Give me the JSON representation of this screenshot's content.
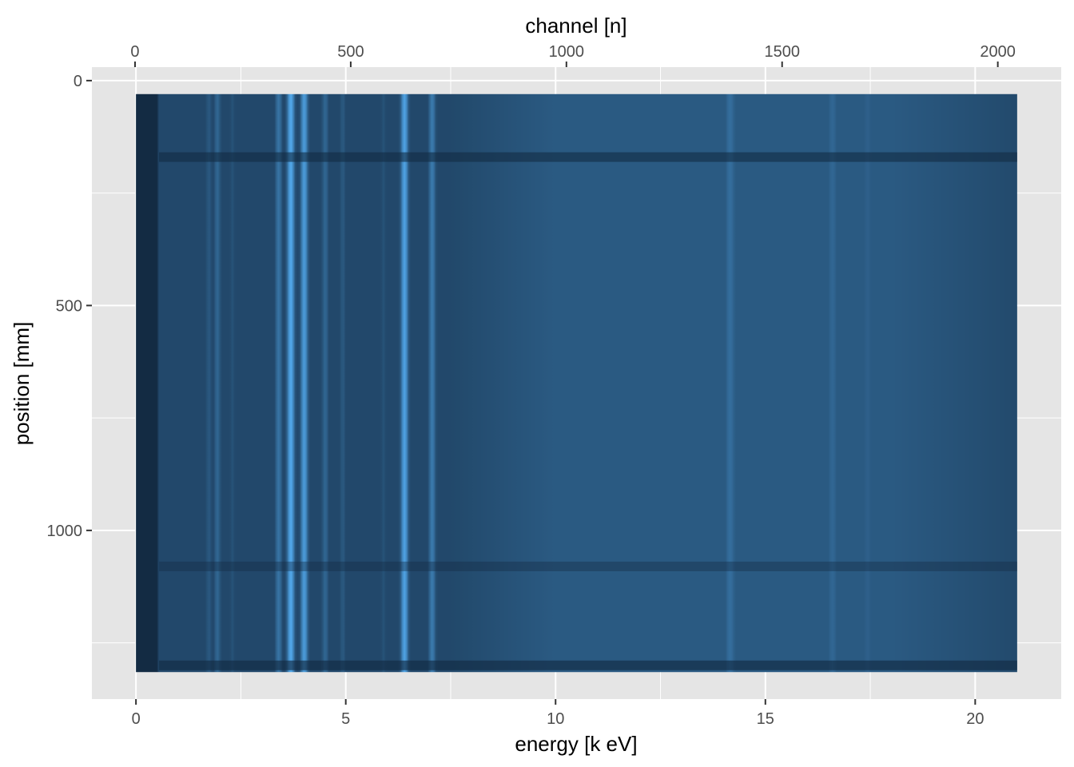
{
  "chart_data": {
    "type": "heatmap",
    "xlabel": "energy [k eV]",
    "ylabel": "position [mm]",
    "x2label": "channel [n]",
    "xlim": [
      -1.05,
      22.05
    ],
    "ylim": [
      1375,
      -30
    ],
    "x2lim": [
      -100,
      2147
    ],
    "x_ticks": [
      0,
      5,
      10,
      15,
      20
    ],
    "y_ticks": [
      0,
      500,
      1000
    ],
    "x2_ticks": [
      0,
      500,
      1000,
      1500,
      2000
    ],
    "data_extent": {
      "x": [
        0,
        21
      ],
      "y": [
        30,
        1315
      ],
      "channel": [
        0,
        2047
      ]
    },
    "colors": {
      "panel_background": "#e5e5e5",
      "grid": "#ffffff",
      "low": "#132b43",
      "high": "#56b1f7"
    },
    "emission_lines_kev": [
      {
        "energy": 0.25,
        "intensity": 0.0
      },
      {
        "energy": 1.74,
        "intensity": 0.35
      },
      {
        "energy": 1.94,
        "intensity": 0.45
      },
      {
        "energy": 2.3,
        "intensity": 0.3
      },
      {
        "energy": 3.4,
        "intensity": 0.55
      },
      {
        "energy": 3.69,
        "intensity": 0.95
      },
      {
        "energy": 4.01,
        "intensity": 0.85
      },
      {
        "energy": 4.51,
        "intensity": 0.45
      },
      {
        "energy": 4.93,
        "intensity": 0.35
      },
      {
        "energy": 5.9,
        "intensity": 0.3
      },
      {
        "energy": 6.4,
        "intensity": 0.9
      },
      {
        "energy": 7.06,
        "intensity": 0.6
      },
      {
        "energy": 8.05,
        "intensity": 0.25
      },
      {
        "energy": 8.63,
        "intensity": 0.25
      },
      {
        "energy": 14.16,
        "intensity": 0.5
      },
      {
        "energy": 15.77,
        "intensity": 0.3
      },
      {
        "energy": 16.6,
        "intensity": 0.45
      },
      {
        "energy": 17.44,
        "intensity": 0.4
      }
    ],
    "dark_rows_mm": [
      {
        "position": 170,
        "intensity": 0.6
      },
      {
        "position": 1080,
        "intensity": 0.4
      },
      {
        "position": 1300,
        "intensity": 0.65
      }
    ]
  }
}
